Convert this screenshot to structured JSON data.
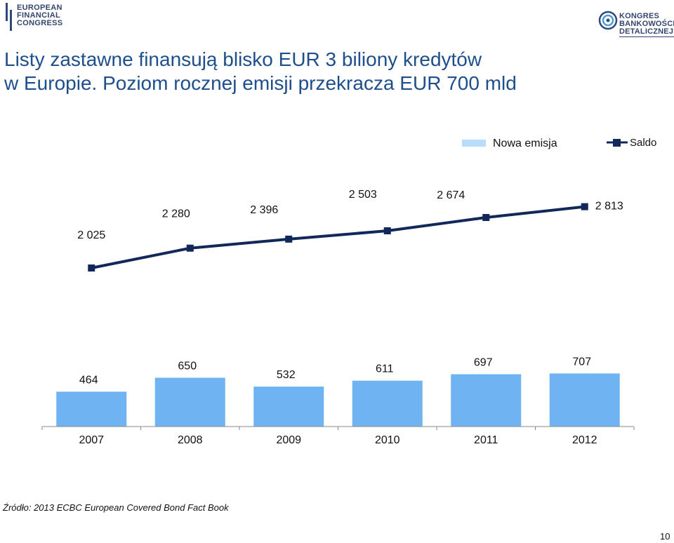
{
  "logos": {
    "left": [
      "EUROPEAN",
      "FINANCIAL",
      "CONGRESS"
    ],
    "right": [
      "KONGRES",
      "BANKOWOŚCI",
      "DETALICZNEJ"
    ]
  },
  "title": {
    "line1": "Listy zastawne finansują blisko EUR 3 biliony kredytów",
    "line2": "w Europie. Poziom rocznej emisji przekracza EUR 700 mld"
  },
  "source": "Źródło: 2013 ECBC European Covered Bond Fact Book",
  "page_number": "10",
  "chart_data": {
    "type": "bar",
    "categories": [
      "2007",
      "2008",
      "2009",
      "2010",
      "2011",
      "2012"
    ],
    "series": [
      {
        "name": "Nowa emisja",
        "type": "bar",
        "values": [
          464,
          650,
          532,
          611,
          697,
          707
        ],
        "labels": [
          "464",
          "650",
          "532",
          "611",
          "697",
          "707"
        ],
        "color": "#6fb3f2"
      },
      {
        "name": "Saldo",
        "type": "line",
        "values": [
          2025,
          2280,
          2396,
          2503,
          2674,
          2813
        ],
        "labels": [
          "2 025",
          "2 280",
          "2 396",
          "2 503",
          "2 674",
          "2 813"
        ],
        "color": "#12275a"
      }
    ],
    "legend_position": "top-right",
    "legend_colors": [
      "#b8dcfb",
      "#12275a"
    ],
    "grid": false
  }
}
